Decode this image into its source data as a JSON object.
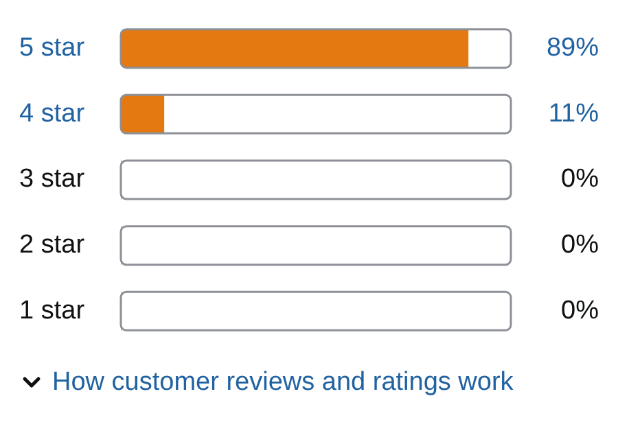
{
  "chart_data": {
    "type": "bar",
    "orientation": "horizontal",
    "categories": [
      "5 star",
      "4 star",
      "3 star",
      "2 star",
      "1 star"
    ],
    "values": [
      89,
      11,
      0,
      0,
      0
    ],
    "value_labels": [
      "89%",
      "11%",
      "0%",
      "0%",
      "0%"
    ],
    "color": "#e47911",
    "xlim": [
      0,
      100
    ],
    "tick_labels": "y",
    "grid": false,
    "legend": false,
    "annotations": [
      "How customer reviews and ratings work"
    ]
  }
}
